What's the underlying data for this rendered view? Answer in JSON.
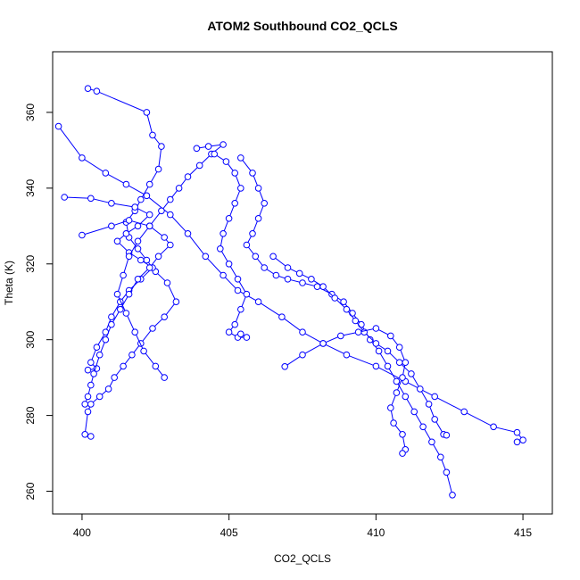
{
  "chart_data": {
    "type": "line",
    "title": "ATOM2 Southbound CO2_QCLS",
    "xlabel": "CO2_QCLS",
    "ylabel": "Theta (K)",
    "xlim": [
      399,
      416
    ],
    "ylim": [
      254,
      376
    ],
    "x_ticks": [
      400,
      405,
      410,
      415
    ],
    "x_tick_labels": [
      "400",
      "405",
      "410",
      "415"
    ],
    "y_ticks": [
      260,
      280,
      300,
      320,
      340,
      360
    ],
    "y_tick_labels": [
      "260",
      "280",
      "300",
      "320",
      "340",
      "360"
    ],
    "grid": false,
    "legend": "none",
    "colors": {
      "series": "#0000ff",
      "frame": "#000000"
    },
    "series": [
      {
        "values_xy": [
          [
            400.2,
            366.3
          ],
          [
            400.5,
            365.6
          ],
          [
            402.2,
            360.0
          ],
          [
            402.4,
            354.0
          ],
          [
            402.7,
            351.0
          ],
          [
            402.6,
            345.0
          ],
          [
            402.3,
            341.0
          ],
          [
            402.0,
            337.0
          ],
          [
            401.8,
            334.0
          ],
          [
            401.5,
            331.0
          ],
          [
            401.6,
            327.0
          ],
          [
            401.9,
            324.0
          ],
          [
            402.2,
            321.0
          ],
          [
            402.5,
            318.0
          ],
          [
            402.9,
            315.0
          ],
          [
            403.2,
            310.0
          ],
          [
            402.8,
            306.0
          ],
          [
            402.4,
            303.0
          ],
          [
            402.0,
            299.0
          ],
          [
            401.7,
            296.0
          ],
          [
            401.4,
            293.0
          ],
          [
            401.1,
            290.0
          ],
          [
            400.9,
            287.0
          ],
          [
            400.6,
            285.0
          ],
          [
            400.3,
            283.0
          ],
          [
            400.2,
            281.0
          ],
          [
            400.1,
            275.0
          ],
          [
            400.3,
            274.5
          ]
        ]
      },
      {
        "values_xy": [
          [
            399.2,
            356.3
          ],
          [
            400.0,
            348.0
          ],
          [
            400.8,
            344.0
          ],
          [
            401.5,
            341.0
          ],
          [
            402.2,
            338.0
          ],
          [
            403.0,
            333.0
          ],
          [
            403.6,
            328.0
          ],
          [
            404.2,
            322.0
          ],
          [
            404.8,
            317.0
          ],
          [
            405.3,
            313.0
          ],
          [
            406.0,
            310.0
          ],
          [
            406.8,
            306.0
          ],
          [
            407.5,
            302.0
          ],
          [
            408.2,
            299.0
          ],
          [
            409.0,
            296.0
          ],
          [
            410.0,
            293.0
          ],
          [
            411.0,
            289.0
          ],
          [
            412.0,
            285.0
          ],
          [
            413.0,
            281.0
          ],
          [
            414.0,
            277.0
          ],
          [
            414.8,
            275.5
          ],
          [
            415.0,
            273.5
          ],
          [
            414.8,
            273.0
          ]
        ]
      },
      {
        "values_xy": [
          [
            399.4,
            337.6
          ],
          [
            400.3,
            337.3
          ],
          [
            401.0,
            336.0
          ],
          [
            401.8,
            335.0
          ],
          [
            402.3,
            333.0
          ],
          [
            401.9,
            330.0
          ],
          [
            401.5,
            328.0
          ],
          [
            401.2,
            326.0
          ],
          [
            401.6,
            323.0
          ],
          [
            402.0,
            321.0
          ],
          [
            402.4,
            319.0
          ],
          [
            402.0,
            316.0
          ],
          [
            401.6,
            313.0
          ],
          [
            401.3,
            310.0
          ],
          [
            401.0,
            306.0
          ],
          [
            400.8,
            302.0
          ],
          [
            400.5,
            298.0
          ],
          [
            400.3,
            294.0
          ],
          [
            400.5,
            292.4
          ],
          [
            400.2,
            292.0
          ]
        ]
      },
      {
        "values_xy": [
          [
            400.0,
            327.6
          ],
          [
            401.0,
            330.0
          ],
          [
            401.6,
            331.5
          ],
          [
            402.3,
            330.0
          ],
          [
            402.8,
            327.0
          ],
          [
            403.0,
            325.0
          ],
          [
            402.6,
            322.0
          ],
          [
            402.3,
            319.0
          ],
          [
            401.9,
            316.0
          ],
          [
            401.6,
            312.0
          ],
          [
            401.3,
            308.0
          ],
          [
            401.0,
            304.0
          ],
          [
            400.8,
            300.0
          ],
          [
            400.6,
            296.0
          ],
          [
            400.4,
            291.0
          ],
          [
            400.3,
            288.0
          ],
          [
            400.2,
            285.0
          ],
          [
            400.1,
            283.0
          ]
        ]
      },
      {
        "values_xy": [
          [
            403.9,
            350.5
          ],
          [
            404.3,
            351.0
          ],
          [
            404.8,
            351.5
          ],
          [
            404.4,
            349.0
          ],
          [
            404.0,
            346.0
          ],
          [
            403.6,
            343.0
          ],
          [
            403.3,
            340.0
          ],
          [
            403.0,
            337.0
          ],
          [
            402.7,
            334.0
          ],
          [
            402.3,
            330.0
          ],
          [
            401.9,
            326.0
          ],
          [
            401.6,
            322.0
          ],
          [
            401.4,
            317.0
          ],
          [
            401.2,
            312.0
          ],
          [
            401.5,
            307.0
          ],
          [
            401.8,
            302.0
          ],
          [
            402.1,
            297.0
          ],
          [
            402.5,
            293.0
          ],
          [
            402.8,
            290.0
          ]
        ]
      },
      {
        "values_xy": [
          [
            404.5,
            349.0
          ],
          [
            404.9,
            347.0
          ],
          [
            405.2,
            344.0
          ],
          [
            405.4,
            340.0
          ],
          [
            405.2,
            336.0
          ],
          [
            405.0,
            332.0
          ],
          [
            404.8,
            328.0
          ],
          [
            404.7,
            324.0
          ],
          [
            405.0,
            320.0
          ],
          [
            405.3,
            316.0
          ],
          [
            405.6,
            312.0
          ],
          [
            405.4,
            308.0
          ],
          [
            405.2,
            304.0
          ],
          [
            405.0,
            302.0
          ],
          [
            405.3,
            300.6
          ],
          [
            405.6,
            300.6
          ],
          [
            405.4,
            301.5
          ]
        ]
      },
      {
        "values_xy": [
          [
            405.4,
            348.0
          ],
          [
            405.8,
            344.0
          ],
          [
            406.0,
            340.0
          ],
          [
            406.2,
            336.0
          ],
          [
            406.0,
            332.0
          ],
          [
            405.8,
            328.0
          ],
          [
            405.6,
            325.0
          ],
          [
            405.9,
            322.0
          ],
          [
            406.2,
            319.0
          ],
          [
            406.6,
            317.0
          ],
          [
            407.0,
            316.0
          ],
          [
            407.5,
            315.0
          ],
          [
            408.0,
            314.0
          ],
          [
            408.5,
            312.0
          ],
          [
            408.9,
            310.0
          ],
          [
            409.2,
            307.0
          ],
          [
            409.5,
            304.0
          ],
          [
            409.8,
            300.0
          ],
          [
            410.1,
            297.0
          ],
          [
            410.4,
            293.0
          ],
          [
            410.7,
            289.0
          ],
          [
            411.0,
            285.0
          ],
          [
            411.3,
            281.0
          ],
          [
            411.6,
            277.0
          ],
          [
            411.9,
            273.0
          ],
          [
            412.2,
            269.0
          ],
          [
            412.4,
            265.0
          ],
          [
            412.6,
            259.0
          ]
        ]
      },
      {
        "values_xy": [
          [
            406.5,
            322.0
          ],
          [
            407.0,
            319.0
          ],
          [
            407.4,
            317.5
          ],
          [
            407.8,
            316.0
          ],
          [
            408.2,
            314.0
          ],
          [
            408.6,
            311.0
          ],
          [
            409.0,
            308.0
          ],
          [
            409.3,
            305.0
          ],
          [
            409.6,
            302.0
          ],
          [
            410.0,
            299.0
          ],
          [
            410.4,
            297.0
          ],
          [
            410.8,
            294.0
          ],
          [
            411.2,
            291.0
          ],
          [
            411.5,
            287.0
          ],
          [
            411.8,
            283.0
          ],
          [
            412.0,
            279.0
          ],
          [
            412.3,
            275.0
          ],
          [
            412.4,
            274.8
          ]
        ]
      },
      {
        "values_xy": [
          [
            406.9,
            292.9
          ],
          [
            407.5,
            296.0
          ],
          [
            408.2,
            299.0
          ],
          [
            408.8,
            301.0
          ],
          [
            409.4,
            302.0
          ],
          [
            410.0,
            303.0
          ],
          [
            410.5,
            301.0
          ],
          [
            410.8,
            298.0
          ],
          [
            411.0,
            294.0
          ],
          [
            410.9,
            290.0
          ],
          [
            410.7,
            286.0
          ],
          [
            410.5,
            282.0
          ],
          [
            410.6,
            278.0
          ],
          [
            410.9,
            275.0
          ],
          [
            411.0,
            271.0
          ],
          [
            410.9,
            270.0
          ]
        ]
      }
    ]
  }
}
